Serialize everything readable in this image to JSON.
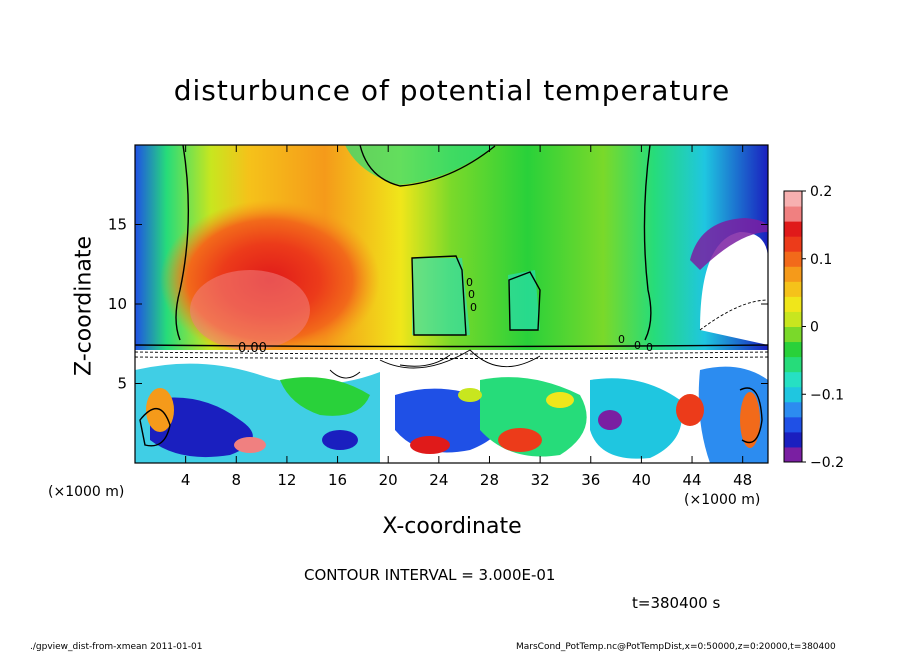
{
  "chart_data": {
    "type": "heatmap",
    "title": "disturbunce of potential temperature",
    "xlabel": "X-coordinate",
    "ylabel": "Z-coordinate",
    "x_unit_label": "(×1000 m)",
    "x_ticks": [
      "4",
      "8",
      "12",
      "16",
      "20",
      "24",
      "28",
      "32",
      "36",
      "40",
      "44",
      "48"
    ],
    "y_ticks": [
      "5",
      "10",
      "15"
    ],
    "xlim": [
      0,
      50
    ],
    "ylim": [
      0,
      20
    ],
    "colorbar": {
      "range": [
        -0.2,
        0.2
      ],
      "tick_labels": [
        "0.2",
        "0.1",
        "0",
        "−0.1",
        "−0.2"
      ],
      "tick_values": [
        0.2,
        0.1,
        0,
        -0.1,
        -0.2
      ],
      "colors": [
        "#7a1fa2",
        "#1a1fbf",
        "#1f50e6",
        "#2c8cf0",
        "#1fc6e0",
        "#26e0c3",
        "#26dc7a",
        "#29d13a",
        "#7ad92a",
        "#c8e61f",
        "#f0e61a",
        "#f5c21a",
        "#f59a1a",
        "#f26a1a",
        "#ec3b1a",
        "#e01a1a",
        "#f08080",
        "#f7b0b0"
      ]
    },
    "contour_label": "0.00",
    "contour_values": [
      "0",
      "0",
      "0",
      "0",
      "0",
      "0"
    ]
  },
  "annotations": {
    "contour_interval": "CONTOUR INTERVAL = 3.000E-01",
    "time": "t=380400 s"
  },
  "footer": {
    "left": "./gpview_dist-from-xmean  2011-01-01",
    "right": "MarsCond_PotTemp.nc@PotTempDist,x=0:50000,z=0:20000,t=380400"
  }
}
